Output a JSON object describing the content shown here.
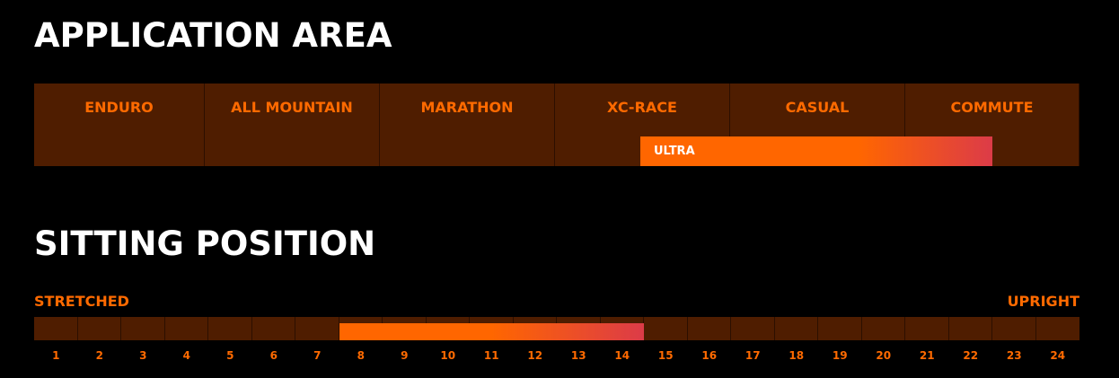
{
  "application_area": {
    "title": "APPLICATION AREA",
    "categories": [
      "ENDURO",
      "ALL MOUNTAIN",
      "MARATHON",
      "XC-RACE",
      "CASUAL",
      "COMMUTE"
    ],
    "highlight": {
      "label": "ULTRA",
      "start_fraction": 0.58,
      "end_fraction": 0.917
    },
    "colors": {
      "cell_bg": "#4f1d00",
      "label": "#ff6a00",
      "bar_start": "#ff6600",
      "bar_end": "#dc3b48"
    }
  },
  "sitting_position": {
    "title": "SITTING POSITION",
    "left_label": "STRETCHED",
    "right_label": "UPRIGHT",
    "scale": [
      "1",
      "2",
      "3",
      "4",
      "5",
      "6",
      "7",
      "8",
      "9",
      "10",
      "11",
      "12",
      "13",
      "14",
      "15",
      "16",
      "17",
      "18",
      "19",
      "20",
      "21",
      "22",
      "23",
      "24"
    ],
    "range": {
      "from": 8,
      "to": 14
    }
  }
}
